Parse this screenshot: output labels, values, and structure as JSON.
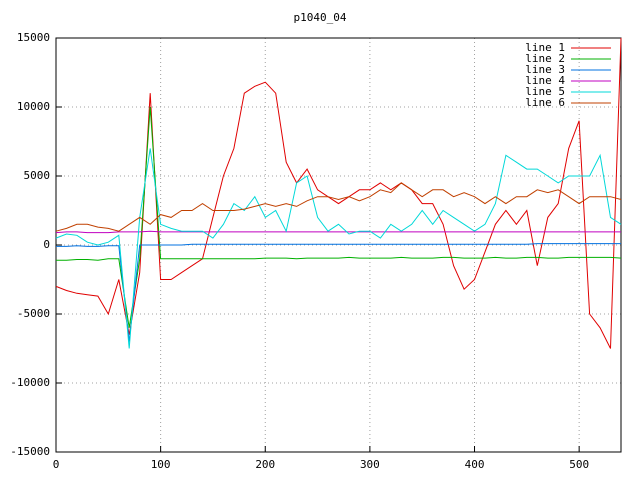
{
  "chart_data": {
    "type": "line",
    "title": "p1040_04",
    "x": [
      0,
      10,
      20,
      30,
      40,
      50,
      60,
      70,
      80,
      90,
      100,
      110,
      120,
      130,
      140,
      150,
      160,
      170,
      180,
      190,
      200,
      210,
      220,
      230,
      240,
      250,
      260,
      270,
      280,
      290,
      300,
      310,
      320,
      330,
      340,
      350,
      360,
      370,
      380,
      390,
      400,
      410,
      420,
      430,
      440,
      450,
      460,
      470,
      480,
      490,
      500,
      510,
      520,
      530,
      540
    ],
    "xlim": [
      0,
      540
    ],
    "xticks": [
      0,
      100,
      200,
      300,
      400,
      500
    ],
    "ylim": [
      -15000,
      15000
    ],
    "yticks": [
      -15000,
      -10000,
      -5000,
      0,
      5000,
      10000,
      15000
    ],
    "grid": true,
    "legend": "top-right",
    "series": [
      {
        "name": "line 1",
        "color": "#e00000",
        "values": [
          -3000,
          -3300,
          -3500,
          -3600,
          -3700,
          -5000,
          -2500,
          -6500,
          -2000,
          11000,
          -2500,
          -2500,
          -2000,
          -1500,
          -1000,
          2000,
          5000,
          7000,
          11000,
          11500,
          11800,
          11000,
          6000,
          4500,
          5500,
          4000,
          3500,
          3000,
          3500,
          4000,
          4000,
          4500,
          4000,
          4500,
          4000,
          3000,
          3000,
          1500,
          -1500,
          -3200,
          -2500,
          -500,
          1500,
          2500,
          1500,
          2500,
          -1500,
          2000,
          3000,
          7000,
          9000,
          -5000,
          -6000,
          -7500,
          15000
        ]
      },
      {
        "name": "line 2",
        "color": "#00b000",
        "values": [
          -1100,
          -1100,
          -1050,
          -1050,
          -1100,
          -1000,
          -1000,
          -6000,
          -1000,
          10000,
          -1000,
          -1000,
          -1000,
          -1000,
          -1000,
          -1000,
          -1000,
          -1000,
          -1000,
          -1000,
          -950,
          -950,
          -950,
          -1000,
          -950,
          -950,
          -950,
          -950,
          -900,
          -950,
          -950,
          -950,
          -950,
          -900,
          -950,
          -950,
          -950,
          -900,
          -900,
          -950,
          -950,
          -950,
          -900,
          -950,
          -950,
          -900,
          -900,
          -950,
          -950,
          -900,
          -900,
          -900,
          -900,
          -900,
          -950
        ]
      },
      {
        "name": "line 3",
        "color": "#0070e0",
        "values": [
          -100,
          -100,
          -50,
          -100,
          -100,
          -50,
          -50,
          -7000,
          0,
          0,
          0,
          0,
          0,
          50,
          50,
          50,
          50,
          50,
          50,
          50,
          50,
          50,
          50,
          50,
          50,
          50,
          50,
          50,
          50,
          50,
          50,
          50,
          50,
          50,
          50,
          50,
          50,
          50,
          50,
          50,
          50,
          50,
          50,
          50,
          50,
          50,
          100,
          100,
          100,
          100,
          100,
          100,
          100,
          100,
          100
        ]
      },
      {
        "name": "line 4",
        "color": "#c000c0",
        "values": [
          900,
          950,
          950,
          900,
          900,
          900,
          950,
          950,
          950,
          1000,
          950,
          950,
          950,
          950,
          950,
          950,
          950,
          950,
          950,
          950,
          950,
          950,
          950,
          950,
          950,
          950,
          950,
          950,
          950,
          950,
          950,
          950,
          950,
          950,
          950,
          950,
          950,
          950,
          950,
          950,
          950,
          950,
          950,
          950,
          950,
          950,
          950,
          950,
          950,
          950,
          950,
          950,
          950,
          950,
          950
        ]
      },
      {
        "name": "line 5",
        "color": "#00d8d8",
        "values": [
          500,
          800,
          700,
          200,
          0,
          200,
          700,
          -7500,
          2000,
          7000,
          1500,
          1200,
          1000,
          1000,
          1000,
          500,
          1500,
          3000,
          2500,
          3500,
          2000,
          2500,
          1000,
          4500,
          5000,
          2000,
          1000,
          1500,
          800,
          1000,
          1000,
          500,
          1500,
          1000,
          1500,
          2500,
          1500,
          2500,
          2000,
          1500,
          1000,
          1500,
          3000,
          6500,
          6000,
          5500,
          5500,
          5000,
          4500,
          5000,
          5000,
          5000,
          6500,
          2000,
          1500
        ]
      },
      {
        "name": "line 6",
        "color": "#c04000",
        "values": [
          1000,
          1200,
          1500,
          1500,
          1300,
          1200,
          1000,
          1500,
          2000,
          1500,
          2200,
          2000,
          2500,
          2500,
          3000,
          2500,
          2500,
          2500,
          2600,
          2800,
          3000,
          2800,
          3000,
          2800,
          3200,
          3500,
          3500,
          3300,
          3500,
          3200,
          3500,
          4000,
          3800,
          4500,
          4000,
          3500,
          4000,
          4000,
          3500,
          3800,
          3500,
          3000,
          3500,
          3000,
          3500,
          3500,
          4000,
          3800,
          4000,
          3500,
          3000,
          3500,
          3500,
          3500,
          3300
        ]
      }
    ]
  }
}
